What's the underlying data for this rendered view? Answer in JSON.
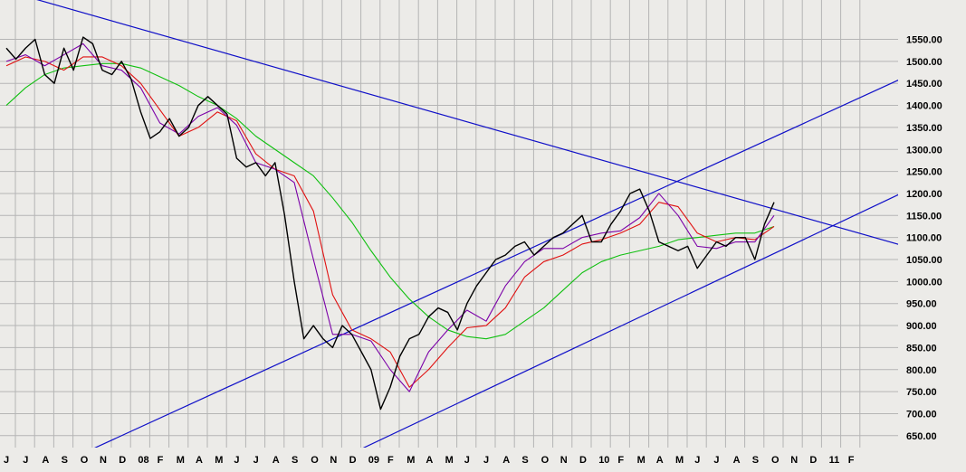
{
  "chart_data": {
    "type": "line",
    "title": "",
    "xlabel": "",
    "ylabel": "",
    "ylim": [
      625,
      1590
    ],
    "grid": true,
    "background": "#ecebe8",
    "y_ticks": [
      650,
      700,
      750,
      800,
      850,
      900,
      950,
      1000,
      1050,
      1100,
      1150,
      1200,
      1250,
      1300,
      1350,
      1400,
      1450,
      1500,
      1550
    ],
    "y_tick_labels": [
      "650.00",
      "700.00",
      "750.00",
      "800.00",
      "850.00",
      "900.00",
      "950.00",
      "1000.00",
      "1050.00",
      "1100.00",
      "1150.00",
      "1200.00",
      "1250.00",
      "1300.00",
      "1350.00",
      "1400.00",
      "1450.00",
      "1500.00",
      "1550.00"
    ],
    "x_tick_labels": [
      "J",
      "J",
      "A",
      "S",
      "O",
      "N",
      "D",
      "08",
      "F",
      "M",
      "A",
      "M",
      "J",
      "J",
      "A",
      "S",
      "O",
      "N",
      "D",
      "09",
      "F",
      "M",
      "A",
      "M",
      "J",
      "J",
      "A",
      "S",
      "O",
      "N",
      "D",
      "10",
      "F",
      "M",
      "A",
      "M",
      "J",
      "J",
      "A",
      "S",
      "O",
      "N",
      "D",
      "11",
      "F"
    ],
    "x_tick_positions": [
      0,
      1,
      2,
      3,
      4,
      5,
      6,
      7,
      8,
      9,
      10,
      11,
      12,
      13,
      14,
      15,
      16,
      17,
      18,
      19,
      20,
      21,
      22,
      23,
      24,
      25,
      26,
      27,
      28,
      29,
      30,
      31,
      32,
      33,
      34,
      35,
      36,
      37,
      38,
      39,
      40,
      41,
      42,
      43,
      44
    ],
    "xlim": [
      0,
      47
    ],
    "series": [
      {
        "name": "",
        "role": "price",
        "color": "#000000",
        "x": [
          0,
          0.5,
          1,
          1.5,
          2,
          2.5,
          3,
          3.5,
          4,
          4.5,
          5,
          5.5,
          6,
          6.5,
          7,
          7.5,
          8,
          8.5,
          9,
          9.5,
          10,
          10.5,
          11,
          11.5,
          12,
          12.5,
          13,
          13.5,
          14,
          14.5,
          15,
          15.5,
          16,
          16.5,
          17,
          17.5,
          18,
          18.5,
          19,
          19.5,
          20,
          20.5,
          21,
          21.5,
          22,
          22.5,
          23,
          23.5,
          24,
          24.5,
          25,
          25.5,
          26,
          26.5,
          27,
          27.5,
          28,
          28.5,
          29,
          29.5,
          30,
          30.5,
          31,
          31.5,
          32,
          32.5,
          33,
          33.5,
          34,
          34.5,
          35,
          35.5,
          36,
          36.5,
          37,
          37.5,
          38,
          38.5,
          39,
          39.5,
          40
        ],
        "values": [
          1530,
          1505,
          1530,
          1550,
          1470,
          1450,
          1530,
          1480,
          1555,
          1540,
          1480,
          1470,
          1500,
          1460,
          1385,
          1325,
          1340,
          1370,
          1330,
          1350,
          1400,
          1420,
          1400,
          1380,
          1280,
          1260,
          1270,
          1240,
          1270,
          1150,
          1000,
          870,
          900,
          870,
          850,
          900,
          880,
          840,
          800,
          710,
          760,
          830,
          870,
          880,
          920,
          940,
          930,
          890,
          950,
          990,
          1020,
          1050,
          1060,
          1080,
          1090,
          1060,
          1080,
          1100,
          1110,
          1130,
          1150,
          1090,
          1090,
          1130,
          1160,
          1200,
          1210,
          1160,
          1090,
          1080,
          1070,
          1080,
          1030,
          1060,
          1090,
          1080,
          1100,
          1100,
          1050,
          1130,
          1180
        ]
      },
      {
        "name": "",
        "role": "short moving average",
        "color": "#7b00a8",
        "x": [
          0,
          1,
          2,
          3,
          4,
          5,
          6,
          7,
          8,
          9,
          10,
          11,
          12,
          13,
          14,
          15,
          16,
          17,
          18,
          19,
          20,
          21,
          22,
          23,
          24,
          25,
          26,
          27,
          28,
          29,
          30,
          31,
          32,
          33,
          34,
          35,
          36,
          37,
          38,
          39,
          40
        ],
        "values": [
          1500,
          1515,
          1490,
          1515,
          1540,
          1490,
          1480,
          1440,
          1360,
          1335,
          1375,
          1395,
          1355,
          1270,
          1255,
          1225,
          1050,
          880,
          880,
          865,
          800,
          750,
          840,
          890,
          935,
          910,
          990,
          1045,
          1075,
          1075,
          1100,
          1110,
          1115,
          1145,
          1200,
          1150,
          1080,
          1075,
          1090,
          1090,
          1150
        ]
      },
      {
        "name": "",
        "role": "medium moving average",
        "color": "#e01010",
        "x": [
          0,
          1,
          2,
          3,
          4,
          5,
          6,
          7,
          8,
          9,
          10,
          11,
          12,
          13,
          14,
          15,
          16,
          17,
          18,
          19,
          20,
          21,
          22,
          23,
          24,
          25,
          26,
          27,
          28,
          29,
          30,
          31,
          32,
          33,
          34,
          35,
          36,
          37,
          38,
          39,
          40
        ],
        "values": [
          1490,
          1510,
          1500,
          1480,
          1510,
          1510,
          1490,
          1450,
          1390,
          1330,
          1350,
          1385,
          1365,
          1290,
          1255,
          1240,
          1160,
          970,
          890,
          870,
          840,
          760,
          800,
          850,
          895,
          900,
          940,
          1010,
          1045,
          1060,
          1085,
          1095,
          1110,
          1130,
          1180,
          1170,
          1110,
          1090,
          1100,
          1095,
          1125
        ]
      },
      {
        "name": "",
        "role": "long moving average",
        "color": "#10c010",
        "x": [
          0,
          1,
          2,
          3,
          4,
          5,
          6,
          7,
          8,
          9,
          10,
          11,
          12,
          13,
          14,
          15,
          16,
          17,
          18,
          19,
          20,
          21,
          22,
          23,
          24,
          25,
          26,
          27,
          28,
          29,
          30,
          31,
          32,
          33,
          34,
          35,
          36,
          37,
          38,
          39,
          40
        ],
        "values": [
          1400,
          1440,
          1470,
          1485,
          1490,
          1495,
          1495,
          1485,
          1465,
          1445,
          1420,
          1400,
          1370,
          1330,
          1300,
          1270,
          1240,
          1190,
          1135,
          1070,
          1010,
          960,
          920,
          890,
          875,
          870,
          880,
          910,
          940,
          980,
          1020,
          1045,
          1060,
          1070,
          1080,
          1095,
          1100,
          1105,
          1110,
          1110,
          1125
        ]
      }
    ],
    "trendlines": [
      {
        "name": "",
        "role": "descending resistance",
        "color": "#1010c8",
        "points": [
          [
            0,
            1660
          ],
          [
            47,
            1078
          ]
        ]
      },
      {
        "name": "",
        "role": "upper channel",
        "color": "#1010c8",
        "points": [
          [
            4.5,
            620
          ],
          [
            47,
            1468
          ]
        ]
      },
      {
        "name": "",
        "role": "lower channel",
        "color": "#1010c8",
        "points": [
          [
            18.5,
            620
          ],
          [
            47,
            1208
          ]
        ]
      }
    ]
  }
}
